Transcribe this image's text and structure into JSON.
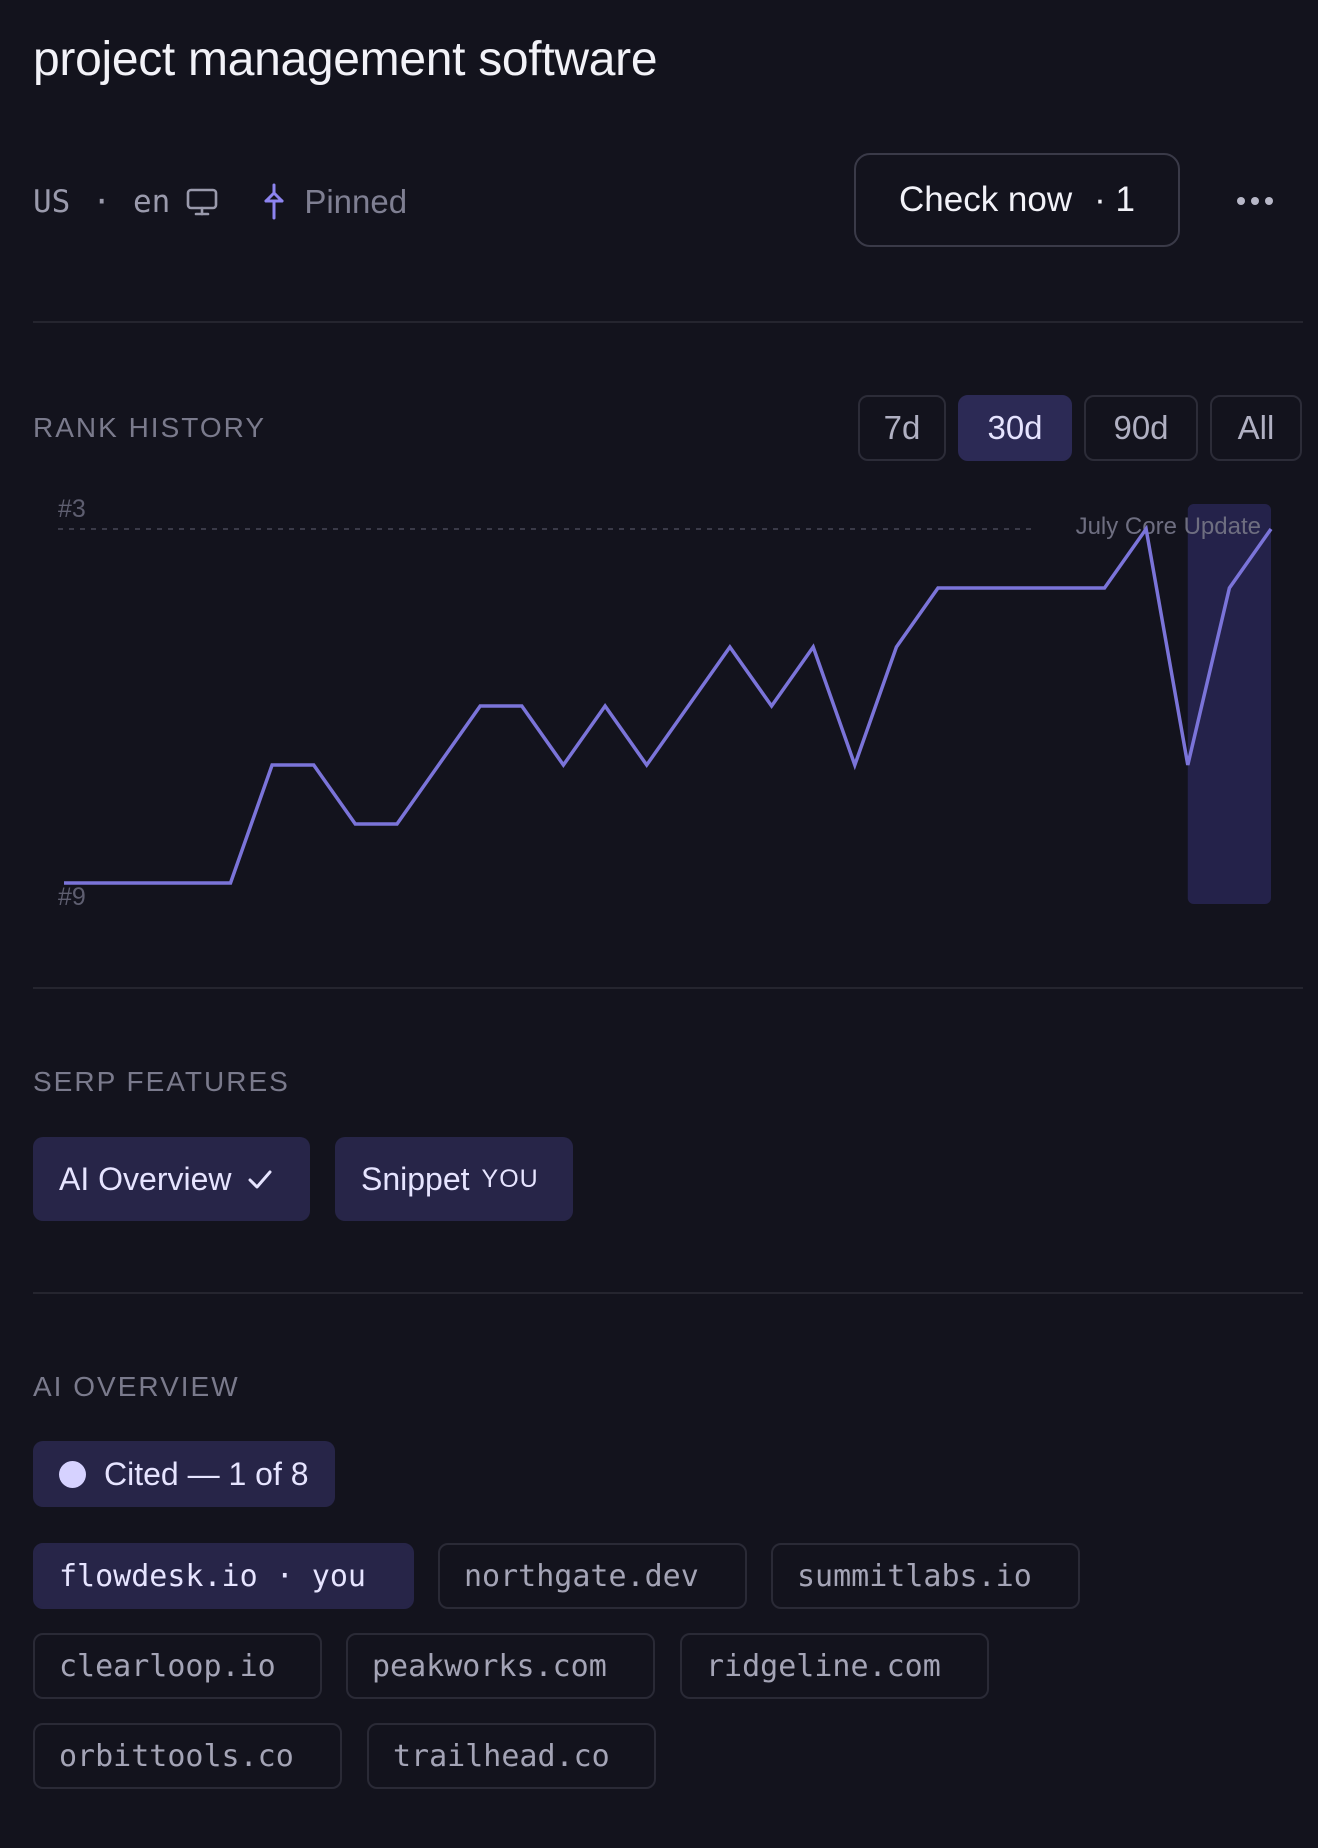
{
  "header": {
    "title": "project management software",
    "country": "US",
    "separator": "·",
    "language": "en",
    "device_icon": "monitor-icon",
    "pin_icon": "pin-icon",
    "pinned_label": "Pinned",
    "check_button": {
      "label": "Check now",
      "count": "· 1"
    },
    "more_icon": "more-horizontal-icon"
  },
  "rank_history": {
    "label": "RANK HISTORY",
    "ranges": [
      "7d",
      "30d",
      "90d",
      "All"
    ],
    "active_range": "30d"
  },
  "chart_data": {
    "type": "line",
    "x": [
      1,
      2,
      3,
      4,
      5,
      6,
      7,
      8,
      9,
      10,
      11,
      12,
      13,
      14,
      15,
      16,
      17,
      18,
      19,
      20,
      21,
      22,
      23,
      24,
      25,
      26,
      27,
      28,
      29,
      30
    ],
    "y": [
      9,
      9,
      9,
      9,
      9,
      7,
      7,
      8,
      8,
      7,
      6,
      6,
      7,
      6,
      7,
      6,
      5,
      6,
      5,
      7,
      5,
      4,
      4,
      4,
      4,
      4,
      3,
      7,
      4,
      3
    ],
    "y_ticks": [
      "#3",
      "#9"
    ],
    "ylim": [
      9,
      3
    ],
    "annotation": {
      "label": "July Core Update",
      "x_range": [
        28,
        30
      ]
    },
    "reference_line": 3,
    "line_color": "#7b74d9",
    "highlight_color": "#24224a",
    "grid": false
  },
  "serp_features": {
    "label": "SERP FEATURES",
    "chips": [
      {
        "label": "AI Overview",
        "icon": "check-icon"
      },
      {
        "label": "Snippet",
        "badge": "YOU"
      }
    ]
  },
  "ai_overview": {
    "label": "AI OVERVIEW",
    "cited_label": "Cited — 1 of 8",
    "domains": [
      {
        "name": "flowdesk.io",
        "suffix": "· you"
      },
      {
        "name": "northgate.dev"
      },
      {
        "name": "summitlabs.io"
      },
      {
        "name": "clearloop.io"
      },
      {
        "name": "peakworks.com"
      },
      {
        "name": "ridgeline.com"
      },
      {
        "name": "orbittools.co"
      },
      {
        "name": "trailhead.co"
      }
    ]
  },
  "colors": {
    "background": "#13131d",
    "accent": "#7b74d9",
    "chip_bg": "#272548"
  }
}
